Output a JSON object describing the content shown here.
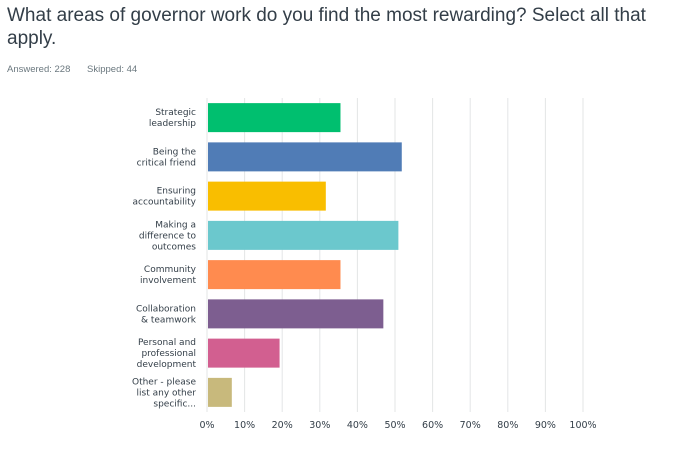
{
  "question": {
    "title": "What areas of governor work do you find the most rewarding? Select all that apply."
  },
  "stats": {
    "answered": "Answered: 228",
    "skipped": "Skipped: 44"
  },
  "chart_data": {
    "type": "bar",
    "orientation": "horizontal",
    "categories": [
      [
        "Strategic",
        "leadership"
      ],
      [
        "Being the",
        "critical friend"
      ],
      [
        "Ensuring",
        "accountability"
      ],
      [
        "Making a",
        "difference to",
        "outcomes"
      ],
      [
        "Community",
        "involvement"
      ],
      [
        "Collaboration",
        "& teamwork"
      ],
      [
        "Personal and",
        "professional",
        "development"
      ],
      [
        "Other - please",
        "list any other",
        "specific..."
      ]
    ],
    "values": [
      35.5,
      51.8,
      31.6,
      50.9,
      35.5,
      46.9,
      19.3,
      6.6
    ],
    "colors": [
      "#00bf6f",
      "#507cb6",
      "#f9be00",
      "#6bc8cd",
      "#ff8b4f",
      "#7d5e90",
      "#d25f90",
      "#c8b97c"
    ],
    "xlim": [
      0,
      100
    ],
    "xticks": [
      "0%",
      "10%",
      "20%",
      "30%",
      "40%",
      "50%",
      "60%",
      "70%",
      "80%",
      "90%",
      "100%"
    ],
    "grid": true
  }
}
